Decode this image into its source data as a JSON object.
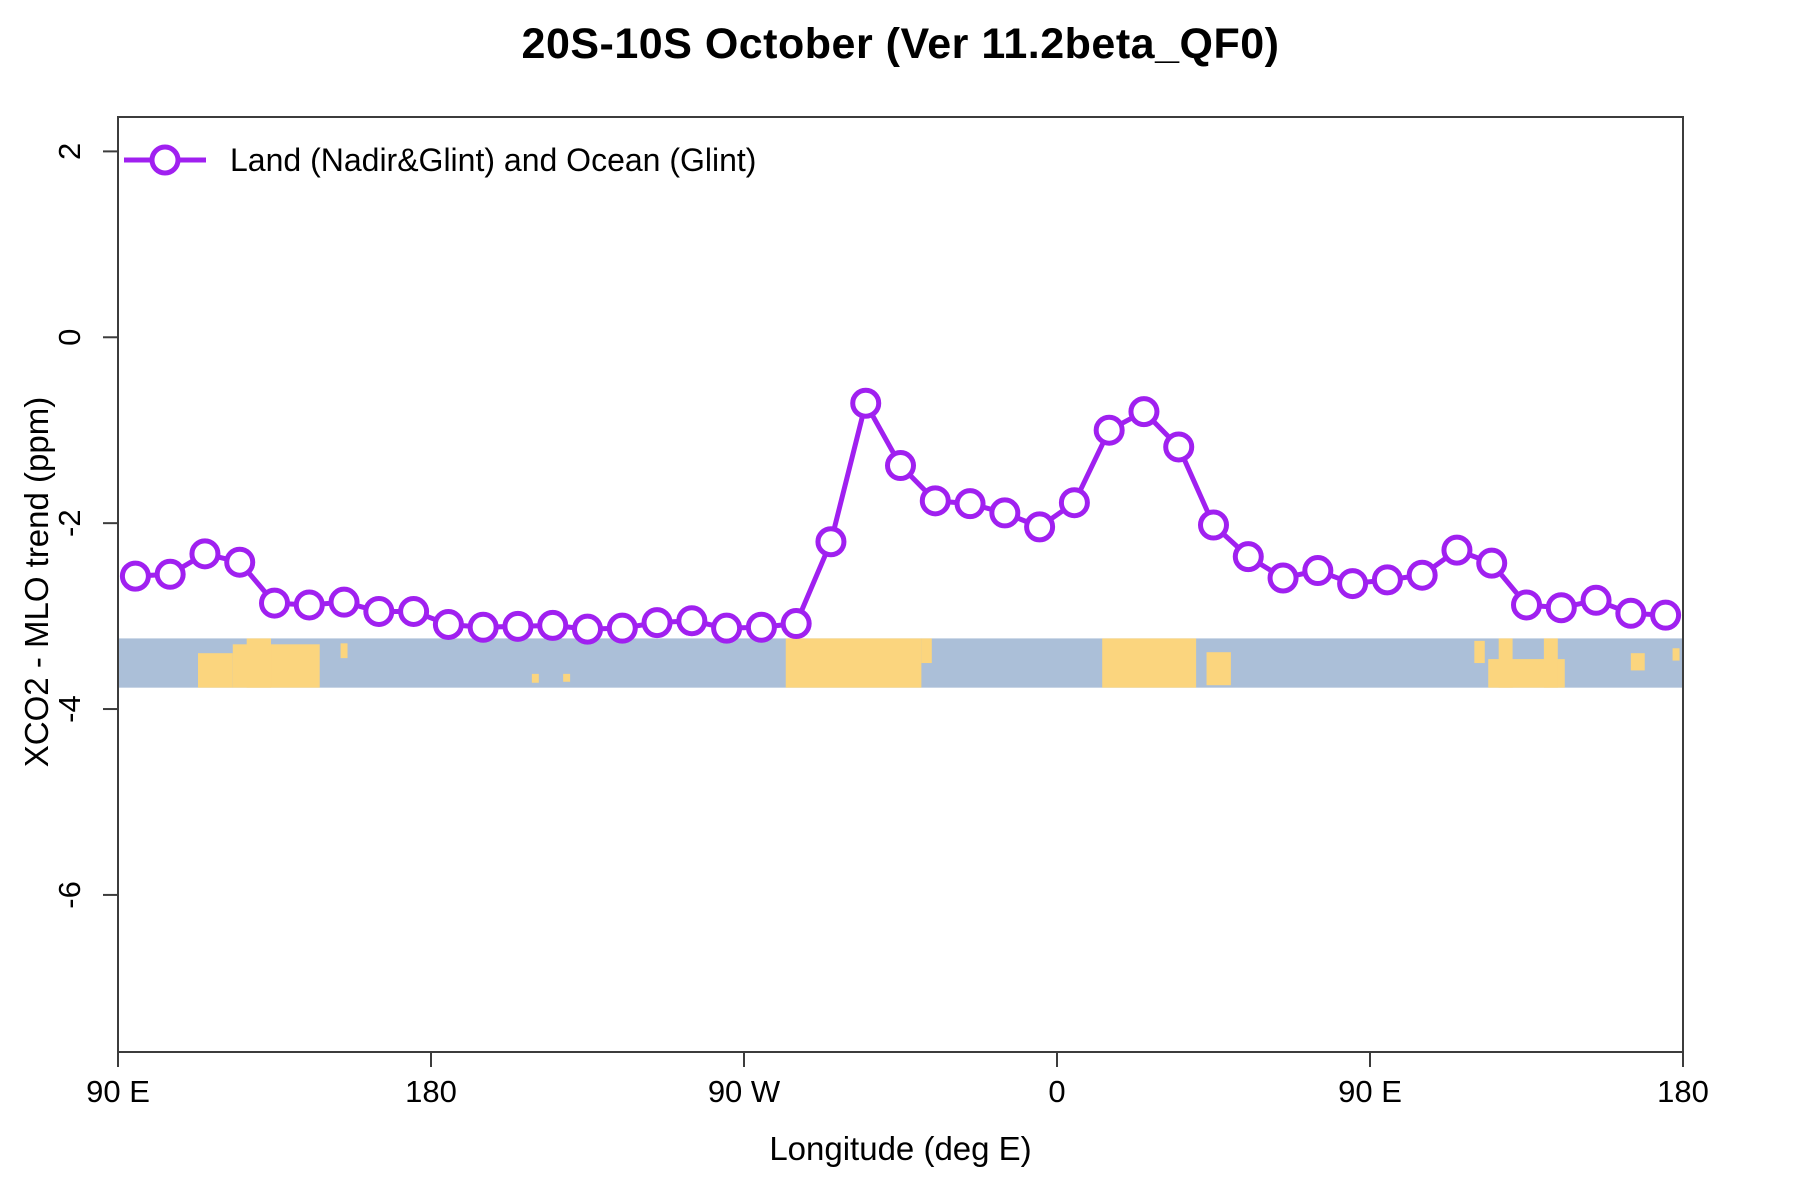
{
  "title": "20S-10S October (Ver 11.2beta_QF0)",
  "legend": {
    "label": "Land (Nadir&Glint) and Ocean (Glint)"
  },
  "axes": {
    "x_label": "Longitude (deg E)",
    "y_label": "XCO2 - MLO trend (ppm)"
  },
  "colors": {
    "series": "#A020F0",
    "axis": "#3C3C3C",
    "ocean": "#ABBFD8",
    "land": "#FBD57E"
  },
  "chart_data": {
    "type": "line",
    "title": "20S-10S October (Ver 11.2beta_QF0)",
    "xlabel": "Longitude (deg E)",
    "ylabel": "XCO2 - MLO trend (ppm)",
    "legend_position": "top-left-inside",
    "grid": false,
    "x_axis_note": "longitude axis starts at 90E and wraps eastward 450 degrees to 180",
    "x_range_deg": [
      0,
      450
    ],
    "ylim": [
      -7.69,
      2.37
    ],
    "x_ticks": [
      {
        "deg": 0,
        "label": "90 E"
      },
      {
        "deg": 90,
        "label": "180"
      },
      {
        "deg": 180,
        "label": "90 W"
      },
      {
        "deg": 270,
        "label": "0"
      },
      {
        "deg": 360,
        "label": "90 E"
      },
      {
        "deg": 450,
        "label": "180"
      }
    ],
    "y_ticks": [
      {
        "value": 2,
        "label": "2"
      },
      {
        "value": 0,
        "label": "0"
      },
      {
        "value": -2,
        "label": "-2"
      },
      {
        "value": -4,
        "label": "-4"
      },
      {
        "value": -6,
        "label": "-6"
      }
    ],
    "series": [
      {
        "name": "Land (Nadir&Glint) and Ocean (Glint)",
        "color": "#A020F0",
        "marker": "open-circle",
        "x_deg": [
          5,
          15,
          25,
          35,
          45,
          55,
          65,
          75,
          85,
          95,
          105,
          115,
          125,
          135,
          145,
          155,
          165,
          175,
          185,
          195,
          205,
          215,
          225,
          235,
          245,
          255,
          265,
          275,
          285,
          295,
          305,
          315,
          325,
          335,
          345,
          355,
          365,
          375,
          385,
          395,
          405,
          415,
          425,
          435,
          445
        ],
        "lon_labels": [
          "95E",
          "105E",
          "115E",
          "125E",
          "135E",
          "145E",
          "155E",
          "165E",
          "175E",
          "175W",
          "165W",
          "155W",
          "145W",
          "135W",
          "125W",
          "115W",
          "105W",
          "95W",
          "85W",
          "75W",
          "65W",
          "55W",
          "45W",
          "35W",
          "25W",
          "15W",
          "5W",
          "5E",
          "15E",
          "25E",
          "35E",
          "45E",
          "55E",
          "65E",
          "75E",
          "85E",
          "95E",
          "105E",
          "115E",
          "125E",
          "135E",
          "145E",
          "155E",
          "165E",
          "175E"
        ],
        "values": [
          -2.57,
          -2.55,
          -2.33,
          -2.42,
          -2.86,
          -2.88,
          -2.85,
          -2.95,
          -2.95,
          -3.09,
          -3.12,
          -3.11,
          -3.1,
          -3.14,
          -3.13,
          -3.07,
          -3.05,
          -3.13,
          -3.12,
          -3.08,
          -2.2,
          -0.71,
          -1.38,
          -1.76,
          -1.79,
          -1.89,
          -2.04,
          -1.78,
          -1.0,
          -0.8,
          -1.18,
          -2.02,
          -2.36,
          -2.59,
          -2.51,
          -2.65,
          -2.61,
          -2.56,
          -2.29,
          -2.43,
          -2.88,
          -2.91,
          -2.83,
          -2.97,
          -2.99
        ]
      }
    ],
    "map_strip": {
      "description": "land/ocean map band for 20S-10S latitude zone",
      "value_top": -3.24,
      "value_bottom": -3.77,
      "ocean_color": "#ABBFD8",
      "land_color": "#FBD57E",
      "land_segments": [
        {
          "deg": [
            23,
            33
          ],
          "frac": [
            0.3,
            1.0
          ],
          "name": "nw-australia"
        },
        {
          "deg": [
            33,
            58
          ],
          "frac": [
            0.12,
            1.0
          ],
          "name": "australia"
        },
        {
          "deg": [
            37,
            44
          ],
          "frac": [
            0.0,
            1.0
          ],
          "name": "australia-north-spike"
        },
        {
          "deg": [
            64,
            66
          ],
          "frac": [
            0.1,
            0.4
          ],
          "name": "island-speck"
        },
        {
          "deg": [
            119,
            121
          ],
          "frac": [
            0.72,
            0.9
          ],
          "name": "tahiti-speck"
        },
        {
          "deg": [
            128,
            130
          ],
          "frac": [
            0.72,
            0.88
          ],
          "name": "tuamotu-speck"
        },
        {
          "deg": [
            192,
            231
          ],
          "frac": [
            0.0,
            1.0
          ],
          "name": "south-america"
        },
        {
          "deg": [
            231,
            234
          ],
          "frac": [
            0.0,
            0.5
          ],
          "name": "south-america-east-tip"
        },
        {
          "deg": [
            283,
            310
          ],
          "frac": [
            0.0,
            1.0
          ],
          "name": "africa"
        },
        {
          "deg": [
            313,
            320
          ],
          "frac": [
            0.28,
            0.95
          ],
          "name": "madagascar"
        },
        {
          "deg": [
            390,
            393
          ],
          "frac": [
            0.05,
            0.5
          ],
          "name": "indonesia-speck"
        },
        {
          "deg": [
            394,
            416
          ],
          "frac": [
            0.42,
            1.0
          ],
          "name": "north-australia"
        },
        {
          "deg": [
            397,
            401
          ],
          "frac": [
            0.0,
            1.0
          ],
          "name": "timor-spike"
        },
        {
          "deg": [
            410,
            414
          ],
          "frac": [
            0.0,
            1.0
          ],
          "name": "new-guinea-spike"
        },
        {
          "deg": [
            435,
            439
          ],
          "frac": [
            0.3,
            0.65
          ],
          "name": "new-caledonia-speck"
        },
        {
          "deg": [
            447,
            449
          ],
          "frac": [
            0.2,
            0.45
          ],
          "name": "fiji-speck"
        }
      ]
    }
  }
}
